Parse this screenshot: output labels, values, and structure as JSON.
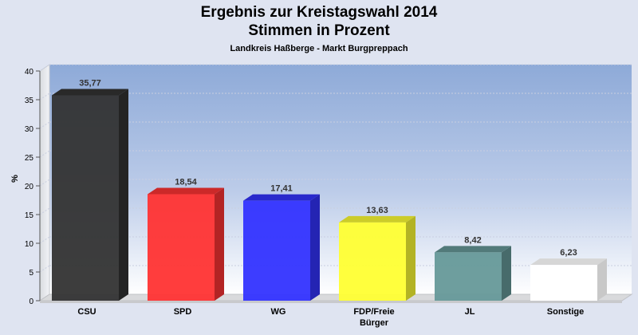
{
  "chart_data": {
    "type": "bar",
    "title_line1": "Ergebnis zur Kreistagswahl 2014",
    "title_line2": "Stimmen in Prozent",
    "subtitle": "Landkreis Haßberge - Markt Burgpreppach",
    "ylabel": "%",
    "xlabel": "",
    "ylim": [
      0,
      40
    ],
    "yticks": [
      0,
      5,
      10,
      15,
      20,
      25,
      30,
      35,
      40
    ],
    "grid": true,
    "categories": [
      "CSU",
      "SPD",
      "WG",
      "FDP/Freie Bürger",
      "JL",
      "Sonstige"
    ],
    "category_lines": [
      [
        "CSU"
      ],
      [
        "SPD"
      ],
      [
        "WG"
      ],
      [
        "FDP/Freie",
        "Bürger"
      ],
      [
        "JL"
      ],
      [
        "Sonstige"
      ]
    ],
    "values": [
      35.77,
      18.54,
      17.41,
      13.63,
      8.42,
      6.23
    ],
    "value_labels": [
      "35,77",
      "18,54",
      "17,41",
      "13,63",
      "8,42",
      "6,23"
    ],
    "colors": [
      "#333333",
      "#ff3333",
      "#3333ff",
      "#ffff33",
      "#669999",
      "#ffffff"
    ]
  }
}
